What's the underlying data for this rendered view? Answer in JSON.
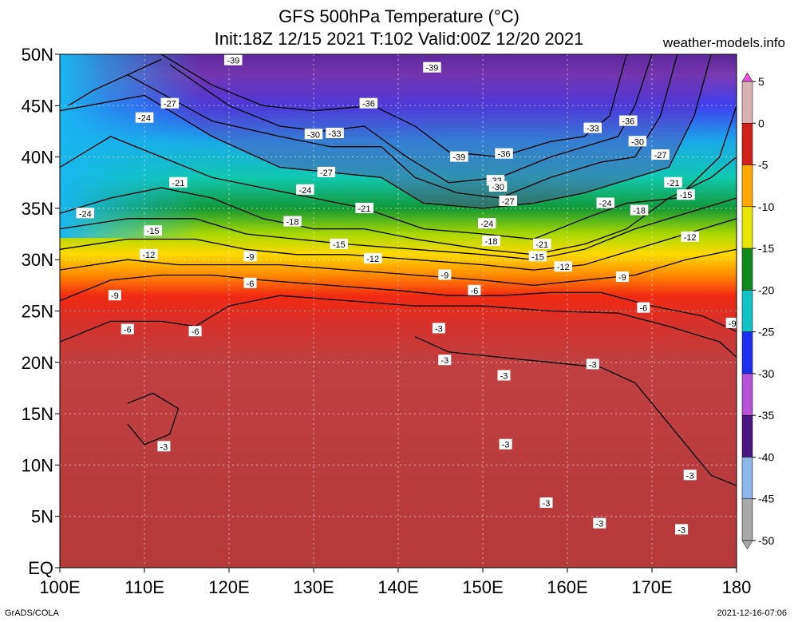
{
  "header": {
    "title_line_1": "GFS 500hPa Temperature (°C)",
    "title_line_2": "Init:18Z 12/15 2021 T:102 Valid:00Z 12/20 2021",
    "source": "weather-models.info"
  },
  "footer": {
    "left": "GrADS/COLA",
    "right": "2021-12-16-07:06"
  },
  "map_data": {
    "extent": {
      "lon_min": 100,
      "lon_max": 180,
      "lat_min": 0,
      "lat_max": 50
    },
    "lon_ticks": [
      {
        "value": 100,
        "label": "100E"
      },
      {
        "value": 110,
        "label": "110E"
      },
      {
        "value": 120,
        "label": "120E"
      },
      {
        "value": 130,
        "label": "130E"
      },
      {
        "value": 140,
        "label": "140E"
      },
      {
        "value": 150,
        "label": "150E"
      },
      {
        "value": 160,
        "label": "160E"
      },
      {
        "value": 170,
        "label": "170E"
      },
      {
        "value": 180,
        "label": "180"
      }
    ],
    "lat_ticks": [
      {
        "value": 50,
        "label": "50N"
      },
      {
        "value": 45,
        "label": "45N"
      },
      {
        "value": 40,
        "label": "40N"
      },
      {
        "value": 35,
        "label": "35N"
      },
      {
        "value": 30,
        "label": "30N"
      },
      {
        "value": 25,
        "label": "25N"
      },
      {
        "value": 20,
        "label": "20N"
      },
      {
        "value": 15,
        "label": "15N"
      },
      {
        "value": 10,
        "label": "10N"
      },
      {
        "value": 5,
        "label": "5N"
      },
      {
        "value": 0,
        "label": "EQ"
      }
    ],
    "color_scale": [
      {
        "value": 5,
        "label": "5",
        "color": "#e24fd6"
      },
      {
        "value": 0,
        "label": "0",
        "color": "#d9b3b3"
      },
      {
        "value": -5,
        "label": "-5",
        "color": "#d0201b"
      },
      {
        "value": -10,
        "label": "-10",
        "color": "#ffa800"
      },
      {
        "value": -15,
        "label": "-15",
        "color": "#e8e600"
      },
      {
        "value": -20,
        "label": "-20",
        "color": "#0f8a1f"
      },
      {
        "value": -25,
        "label": "-25",
        "color": "#12c3c6"
      },
      {
        "value": -30,
        "label": "-30",
        "color": "#1c2ff0"
      },
      {
        "value": -35,
        "label": "-35",
        "color": "#b653d8"
      },
      {
        "value": -40,
        "label": "-40",
        "color": "#4a1682"
      },
      {
        "value": -45,
        "label": "-45",
        "color": "#8fb6e8"
      },
      {
        "value": -50,
        "label": "-50",
        "color": "#a8a8a8"
      }
    ],
    "isotherms": [
      {
        "value": -39,
        "points": [
          [
            101,
            45
          ],
          [
            104,
            46.5
          ],
          [
            108,
            48
          ],
          [
            112,
            49.5
          ]
        ]
      },
      {
        "value": -36,
        "points": [
          [
            112,
            50
          ],
          [
            118,
            47
          ],
          [
            124,
            45
          ],
          [
            130,
            44.5
          ],
          [
            137,
            45
          ],
          [
            142,
            43
          ],
          [
            146,
            40.5
          ],
          [
            152,
            40
          ],
          [
            158,
            41.5
          ],
          [
            162,
            42
          ],
          [
            165,
            44
          ],
          [
            167,
            50
          ]
        ]
      },
      {
        "value": -33,
        "points": [
          [
            113,
            49
          ],
          [
            120,
            45
          ],
          [
            126,
            43
          ],
          [
            131,
            42.5
          ],
          [
            136,
            43
          ],
          [
            141,
            40
          ],
          [
            146,
            37.5
          ],
          [
            152,
            38
          ],
          [
            158,
            40
          ],
          [
            162,
            41
          ],
          [
            166,
            42
          ],
          [
            168,
            45
          ],
          [
            170,
            50
          ]
        ]
      },
      {
        "value": -30,
        "points": [
          [
            108,
            48
          ],
          [
            118,
            43.5
          ],
          [
            126,
            42
          ],
          [
            132,
            41
          ],
          [
            138,
            41
          ],
          [
            142,
            38
          ],
          [
            147,
            36.5
          ],
          [
            152,
            36
          ],
          [
            158,
            38
          ],
          [
            164,
            39.5
          ],
          [
            168,
            40
          ],
          [
            171,
            44
          ],
          [
            173,
            50
          ]
        ]
      },
      {
        "value": -27,
        "points": [
          [
            100,
            44.5
          ],
          [
            110,
            46
          ],
          [
            118,
            42
          ],
          [
            126,
            39
          ],
          [
            132,
            38.5
          ],
          [
            138,
            38
          ],
          [
            143,
            35.5
          ],
          [
            150,
            35
          ],
          [
            156,
            35.5
          ],
          [
            162,
            36.5
          ],
          [
            168,
            38
          ],
          [
            172,
            39
          ],
          [
            175,
            44
          ],
          [
            177,
            50
          ]
        ]
      },
      {
        "value": -24,
        "points": [
          [
            100,
            39
          ],
          [
            106,
            42
          ],
          [
            112,
            40
          ],
          [
            118,
            38
          ],
          [
            124,
            37
          ],
          [
            130,
            36
          ],
          [
            136,
            35
          ],
          [
            143,
            33
          ],
          [
            150,
            32.5
          ],
          [
            156,
            32
          ],
          [
            162,
            34
          ],
          [
            167,
            35.5
          ],
          [
            173,
            36
          ],
          [
            178,
            40
          ],
          [
            180,
            45
          ]
        ]
      },
      {
        "value": -21,
        "points": [
          [
            100,
            34.5
          ],
          [
            106,
            36
          ],
          [
            112,
            37
          ],
          [
            118,
            36
          ],
          [
            124,
            34
          ],
          [
            130,
            33
          ],
          [
            136,
            33
          ],
          [
            142,
            32
          ],
          [
            150,
            31
          ],
          [
            156,
            30.5
          ],
          [
            162,
            31.5
          ],
          [
            167,
            33
          ],
          [
            172,
            36
          ],
          [
            177,
            38
          ],
          [
            180,
            40
          ]
        ]
      },
      {
        "value": -18,
        "points": [
          [
            100,
            33
          ],
          [
            108,
            34
          ],
          [
            116,
            34
          ],
          [
            122,
            32.5
          ],
          [
            128,
            32
          ],
          [
            134,
            31.5
          ],
          [
            142,
            31
          ],
          [
            150,
            30.5
          ],
          [
            156,
            30
          ],
          [
            162,
            31
          ],
          [
            168,
            33
          ],
          [
            174,
            34.5
          ],
          [
            180,
            36
          ]
        ]
      },
      {
        "value": -15,
        "points": [
          [
            100,
            31
          ],
          [
            108,
            32
          ],
          [
            116,
            32
          ],
          [
            122,
            31
          ],
          [
            128,
            30.5
          ],
          [
            134,
            30.5
          ],
          [
            142,
            30
          ],
          [
            150,
            29.5
          ],
          [
            156,
            29
          ],
          [
            162,
            29.5
          ],
          [
            168,
            31
          ],
          [
            174,
            32.5
          ],
          [
            180,
            34
          ]
        ]
      },
      {
        "value": -12,
        "points": [
          [
            100,
            29
          ],
          [
            108,
            30
          ],
          [
            114,
            29.5
          ],
          [
            120,
            29.5
          ],
          [
            126,
            29.5
          ],
          [
            134,
            29
          ],
          [
            142,
            28.5
          ],
          [
            150,
            28
          ],
          [
            156,
            27.5
          ],
          [
            162,
            28
          ],
          [
            168,
            28.5
          ],
          [
            174,
            30
          ],
          [
            180,
            31
          ]
        ]
      },
      {
        "value": -9,
        "points": [
          [
            100,
            26
          ],
          [
            106,
            28
          ],
          [
            112,
            28.5
          ],
          [
            118,
            28.5
          ],
          [
            124,
            28
          ],
          [
            132,
            27.5
          ],
          [
            140,
            27
          ],
          [
            146,
            26.5
          ],
          [
            152,
            26.5
          ],
          [
            158,
            26.8
          ],
          [
            164,
            26.8
          ],
          [
            170,
            25.5
          ],
          [
            176,
            24.5
          ],
          [
            180,
            23
          ]
        ]
      },
      {
        "value": -6,
        "points": [
          [
            100,
            22
          ],
          [
            106,
            24
          ],
          [
            112,
            24
          ],
          [
            116,
            23.5
          ],
          [
            120,
            25.5
          ],
          [
            126,
            26.5
          ],
          [
            134,
            26
          ],
          [
            142,
            25.5
          ],
          [
            150,
            25.5
          ],
          [
            158,
            25
          ],
          [
            166,
            24.8
          ],
          [
            172,
            23.5
          ],
          [
            178,
            22
          ],
          [
            180,
            20.5
          ]
        ]
      },
      {
        "value": -3,
        "points": [
          [
            142,
            22.5
          ],
          [
            146,
            21
          ],
          [
            152,
            20.5
          ],
          [
            158,
            20
          ],
          [
            164,
            19.5
          ],
          [
            168,
            18
          ],
          [
            171,
            15
          ],
          [
            174,
            12
          ],
          [
            177,
            9
          ],
          [
            180,
            8
          ]
        ]
      },
      {
        "value": -3,
        "points": [
          [
            108,
            16
          ],
          [
            111,
            17
          ],
          [
            114,
            15.5
          ],
          [
            113,
            13
          ],
          [
            110,
            12
          ],
          [
            108,
            14
          ]
        ]
      }
    ],
    "contour_labels": [
      {
        "text": "-39",
        "lon": 120.5,
        "lat": 49.4
      },
      {
        "text": "-39",
        "lon": 144.0,
        "lat": 48.7
      },
      {
        "text": "-39",
        "lon": 147.2,
        "lat": 40.0
      },
      {
        "text": "-36",
        "lon": 136.5,
        "lat": 45.2
      },
      {
        "text": "-36",
        "lon": 152.5,
        "lat": 40.3
      },
      {
        "text": "-36",
        "lon": 167.2,
        "lat": 43.5
      },
      {
        "text": "-33",
        "lon": 163.0,
        "lat": 42.8
      },
      {
        "text": "-33",
        "lon": 132.5,
        "lat": 42.3
      },
      {
        "text": "-33",
        "lon": 151.5,
        "lat": 37.7
      },
      {
        "text": "-30",
        "lon": 130.0,
        "lat": 42.2
      },
      {
        "text": "-30",
        "lon": 151.8,
        "lat": 37.1
      },
      {
        "text": "-30",
        "lon": 168.3,
        "lat": 41.5
      },
      {
        "text": "-27",
        "lon": 113.0,
        "lat": 45.2
      },
      {
        "text": "-27",
        "lon": 131.5,
        "lat": 38.5
      },
      {
        "text": "-27",
        "lon": 153.0,
        "lat": 35.7
      },
      {
        "text": "-27",
        "lon": 171.0,
        "lat": 40.2
      },
      {
        "text": "-24",
        "lon": 110.0,
        "lat": 43.8
      },
      {
        "text": "-24",
        "lon": 129.0,
        "lat": 36.8
      },
      {
        "text": "-24",
        "lon": 150.5,
        "lat": 33.5
      },
      {
        "text": "-24",
        "lon": 164.5,
        "lat": 35.5
      },
      {
        "text": "-24",
        "lon": 103.0,
        "lat": 34.5
      },
      {
        "text": "-21",
        "lon": 114.0,
        "lat": 37.5
      },
      {
        "text": "-21",
        "lon": 136.0,
        "lat": 35.0
      },
      {
        "text": "-21",
        "lon": 157.0,
        "lat": 31.5
      },
      {
        "text": "-21",
        "lon": 172.5,
        "lat": 37.5
      },
      {
        "text": "-18",
        "lon": 127.5,
        "lat": 33.7
      },
      {
        "text": "-18",
        "lon": 151.0,
        "lat": 31.8
      },
      {
        "text": "-18",
        "lon": 168.5,
        "lat": 34.8
      },
      {
        "text": "-15",
        "lon": 111.0,
        "lat": 32.8
      },
      {
        "text": "-15",
        "lon": 133.0,
        "lat": 31.5
      },
      {
        "text": "-15",
        "lon": 156.5,
        "lat": 30.3
      },
      {
        "text": "-15",
        "lon": 174.0,
        "lat": 36.3
      },
      {
        "text": "-12",
        "lon": 110.5,
        "lat": 30.5
      },
      {
        "text": "-12",
        "lon": 137.0,
        "lat": 30.1
      },
      {
        "text": "-12",
        "lon": 159.5,
        "lat": 29.3
      },
      {
        "text": "-12",
        "lon": 174.5,
        "lat": 32.2
      },
      {
        "text": "-9",
        "lon": 106.5,
        "lat": 26.5
      },
      {
        "text": "-9",
        "lon": 122.5,
        "lat": 30.3
      },
      {
        "text": "-9",
        "lon": 145.5,
        "lat": 28.5
      },
      {
        "text": "-9",
        "lon": 166.5,
        "lat": 28.3
      },
      {
        "text": "-9",
        "lon": 179.5,
        "lat": 23.8
      },
      {
        "text": "-6",
        "lon": 108.0,
        "lat": 23.2
      },
      {
        "text": "-6",
        "lon": 116.0,
        "lat": 23.0
      },
      {
        "text": "-6",
        "lon": 122.5,
        "lat": 27.7
      },
      {
        "text": "-6",
        "lon": 149.0,
        "lat": 27.0
      },
      {
        "text": "-6",
        "lon": 169.0,
        "lat": 25.3
      },
      {
        "text": "-3",
        "lon": 144.8,
        "lat": 23.3
      },
      {
        "text": "-3",
        "lon": 145.5,
        "lat": 20.2
      },
      {
        "text": "-3",
        "lon": 152.5,
        "lat": 18.7
      },
      {
        "text": "-3",
        "lon": 163.0,
        "lat": 19.8
      },
      {
        "text": "-3",
        "lon": 112.3,
        "lat": 11.8
      },
      {
        "text": "-3",
        "lon": 152.7,
        "lat": 12.0
      },
      {
        "text": "-3",
        "lon": 174.5,
        "lat": 9.0
      },
      {
        "text": "-3",
        "lon": 157.5,
        "lat": 6.3
      },
      {
        "text": "-3",
        "lon": 163.8,
        "lat": 4.3
      },
      {
        "text": "-3",
        "lon": 173.5,
        "lat": 3.7
      }
    ]
  }
}
